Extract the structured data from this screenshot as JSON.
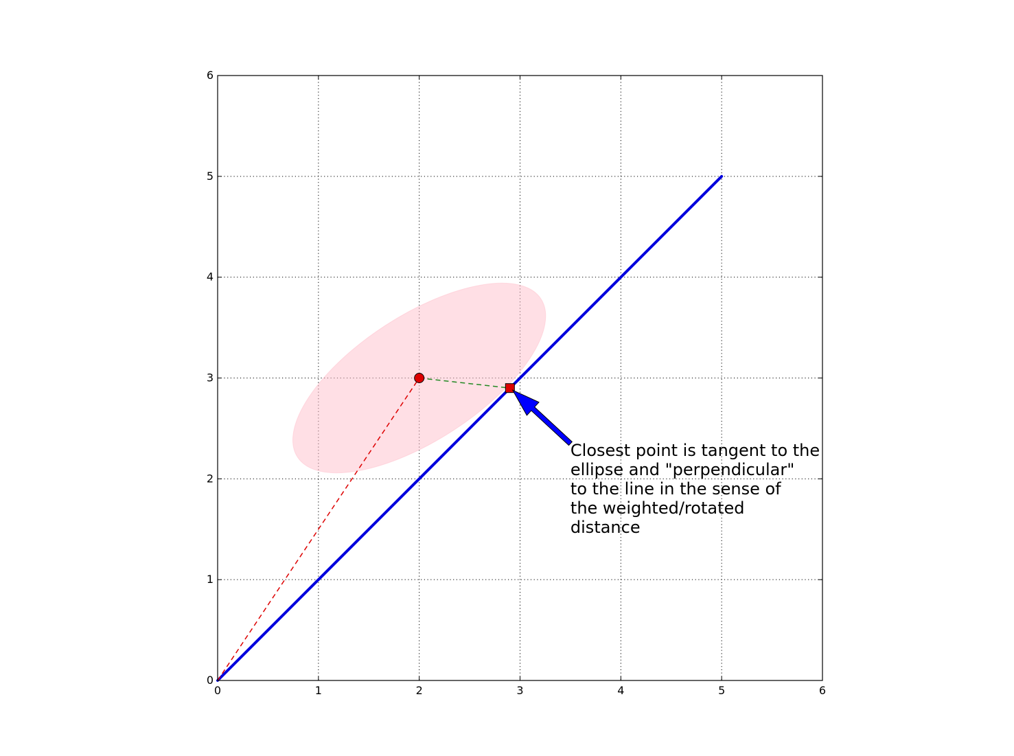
{
  "chart_data": {
    "type": "line",
    "title": "",
    "xlabel": "",
    "ylabel": "",
    "xlim": [
      0,
      6
    ],
    "ylim": [
      0,
      6
    ],
    "x_ticks": [
      "0",
      "1",
      "2",
      "3",
      "4",
      "5",
      "6"
    ],
    "y_ticks": [
      "0",
      "1",
      "2",
      "3",
      "4",
      "5",
      "6"
    ],
    "grid": true,
    "legend": "none",
    "series": [
      {
        "kind": "line",
        "style": "solid",
        "color": "#0000dd",
        "points": [
          [
            0,
            0
          ],
          [
            5,
            5
          ]
        ]
      },
      {
        "kind": "line",
        "style": "dashed",
        "color": "#dd0000",
        "points": [
          [
            0,
            0
          ],
          [
            2,
            3
          ]
        ]
      },
      {
        "kind": "line",
        "style": "dashed",
        "color": "#228822",
        "points": [
          [
            2,
            3
          ],
          [
            2.9,
            2.9
          ]
        ]
      },
      {
        "kind": "marker",
        "shape": "circle",
        "color": "#dd0000",
        "points": [
          [
            2,
            3
          ]
        ]
      },
      {
        "kind": "marker",
        "shape": "square",
        "color": "#dd0000",
        "points": [
          [
            2.9,
            2.9
          ]
        ]
      }
    ],
    "ellipse": {
      "center": [
        2,
        3
      ],
      "semi_major": 1.44,
      "semi_minor": 0.62,
      "angle_deg": 33,
      "color": "#ffc0cb",
      "opacity": 0.5
    },
    "annotations": [
      {
        "text_lines": [
          "Closest point is tangent to the",
          "ellipse and \"perpendicular\"",
          "to the line in the sense of",
          "the weighted/rotated",
          "distance"
        ],
        "xy": [
          2.9,
          2.9
        ],
        "xytext": [
          3.5,
          2.35
        ],
        "arrow_color": "#0000ff"
      }
    ]
  }
}
